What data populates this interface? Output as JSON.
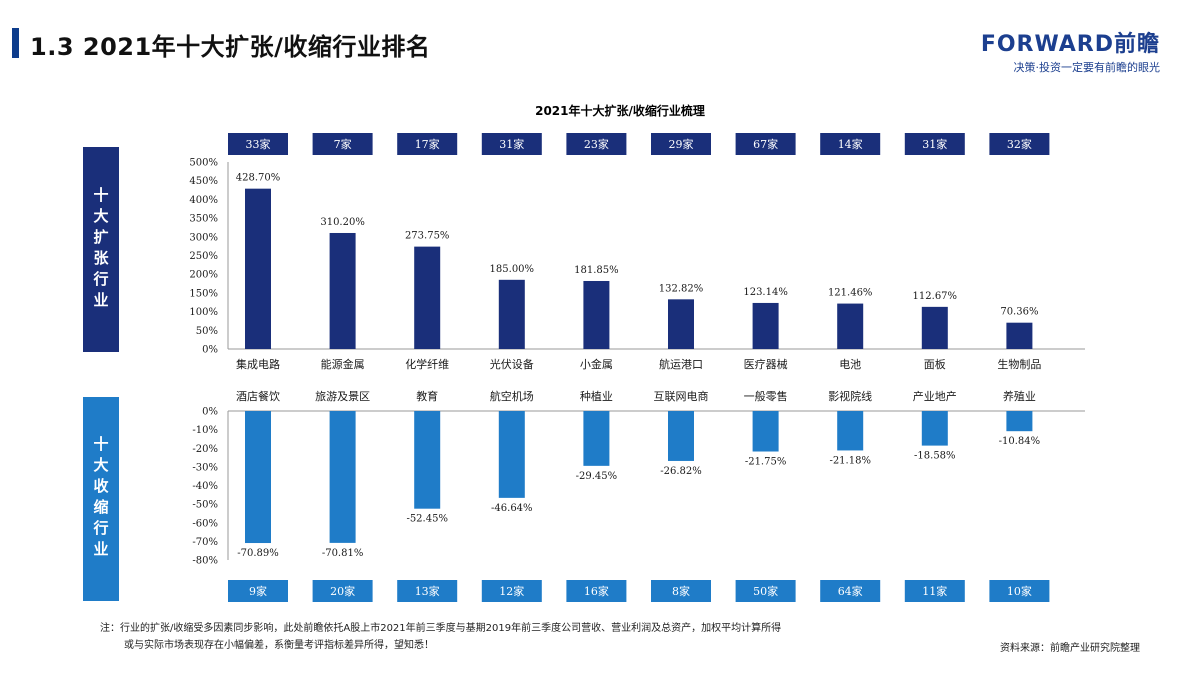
{
  "header": {
    "title": "1.3  2021年十大扩张/收缩行业排名",
    "brand_name": "FORWARD前瞻",
    "brand_slogan": "决策·投资一定要有前瞻的眼光"
  },
  "side_labels": {
    "expand": "十大扩张行业",
    "shrink": "十大收缩行业"
  },
  "colors": {
    "expand_bar": "#1a2f7a",
    "shrink_bar": "#1f7cc8",
    "expand_badge": "#1a2f7a",
    "shrink_badge": "#1f7cc8",
    "brand": "#1c3f8f"
  },
  "chart_data": [
    {
      "type": "bar",
      "title": "2021年十大扩张/收缩行业梳理",
      "categories": [
        "集成电路",
        "能源金属",
        "化学纤维",
        "光伏设备",
        "小金属",
        "航运港口",
        "医疗器械",
        "电池",
        "面板",
        "生物制品"
      ],
      "values": [
        428.7,
        310.2,
        273.75,
        185.0,
        181.85,
        132.82,
        123.14,
        121.46,
        112.67,
        70.36
      ],
      "value_labels": [
        "428.70%",
        "310.20%",
        "273.75%",
        "185.00%",
        "181.85%",
        "132.82%",
        "123.14%",
        "121.46%",
        "112.67%",
        "70.36%"
      ],
      "counts": [
        "33家",
        "7家",
        "17家",
        "31家",
        "23家",
        "29家",
        "67家",
        "14家",
        "31家",
        "32家"
      ],
      "ylim": [
        0,
        500
      ],
      "yticks": [
        "0%",
        "50%",
        "100%",
        "150%",
        "200%",
        "250%",
        "300%",
        "350%",
        "400%",
        "450%",
        "500%"
      ],
      "grid": false
    },
    {
      "type": "bar",
      "categories": [
        "酒店餐饮",
        "旅游及景区",
        "教育",
        "航空机场",
        "种植业",
        "互联网电商",
        "一般零售",
        "影视院线",
        "产业地产",
        "养殖业"
      ],
      "values": [
        -70.89,
        -70.81,
        -52.45,
        -46.64,
        -29.45,
        -26.82,
        -21.75,
        -21.18,
        -18.58,
        -10.84
      ],
      "value_labels": [
        "-70.89%",
        "-70.81%",
        "-52.45%",
        "-46.64%",
        "-29.45%",
        "-26.82%",
        "-21.75%",
        "-21.18%",
        "-18.58%",
        "-10.84%"
      ],
      "counts": [
        "9家",
        "20家",
        "13家",
        "12家",
        "16家",
        "8家",
        "50家",
        "64家",
        "11家",
        "10家"
      ],
      "ylim": [
        -80,
        0
      ],
      "yticks": [
        "0%",
        "-10%",
        "-20%",
        "-30%",
        "-40%",
        "-50%",
        "-60%",
        "-70%",
        "-80%"
      ],
      "grid": false
    }
  ],
  "footer": {
    "note_line1": "注：行业的扩张/收缩受多因素同步影响，此处前瞻依托A股上市2021年前三季度与基期2019年前三季度公司营收、营业利润及总资产，加权平均计算所得",
    "note_line2": "或与实际市场表现存在小幅偏差，系衡量考评指标差异所得，望知悉！",
    "source": "资料来源：前瞻产业研究院整理"
  }
}
